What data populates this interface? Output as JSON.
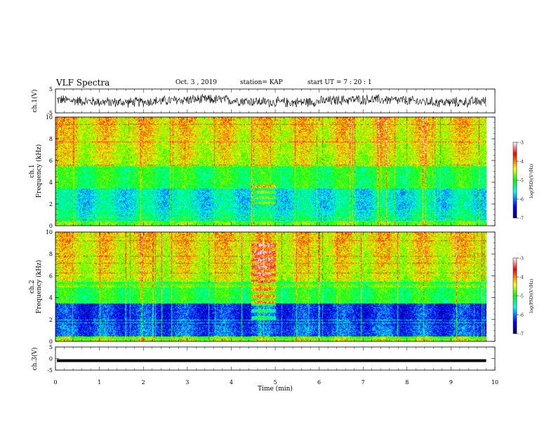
{
  "header": {
    "title": "VLF Spectra",
    "date": "Oct. 3 , 2019",
    "station": "station= KAP",
    "start": "start UT = 7 : 20 : 1"
  },
  "chart_data": [
    {
      "type": "line",
      "panel": "ch1-waveform",
      "ylabel": "ch.1(V)",
      "ylim": [
        -5,
        5
      ],
      "yticks": [
        "5",
        "-5"
      ],
      "xlim": [
        0,
        10
      ],
      "description_mean": 0,
      "noise_amplitude": 2.5,
      "color": "#000000"
    },
    {
      "type": "heatmap",
      "panel": "ch1-spectrogram",
      "ylabel": "ch.1\nFrequency (kHz)",
      "ylim": [
        0,
        10
      ],
      "yticks": [
        "0",
        "2",
        "4",
        "6",
        "8",
        "10"
      ],
      "xlim": [
        0,
        10
      ],
      "data_end_min": 9.8,
      "colorbar": {
        "label": "log(PSD)(V²/Hz)",
        "range": [
          -7,
          -3
        ],
        "ticks": [
          "-3",
          "-4",
          "-5",
          "-6",
          "-7"
        ]
      }
    },
    {
      "type": "heatmap",
      "panel": "ch2-spectrogram",
      "ylabel": "ch.2\nFrequency (kHz)",
      "ylim": [
        0,
        10
      ],
      "yticks": [
        "0",
        "2",
        "4",
        "6",
        "8",
        "10"
      ],
      "xlim": [
        0,
        10
      ],
      "data_end_min": 9.8,
      "colorbar": {
        "label": "log(PSD)(V²/Hz)",
        "range": [
          -7,
          -3
        ],
        "ticks": [
          "-3",
          "-4",
          "-5",
          "-6",
          "-7"
        ]
      }
    },
    {
      "type": "line",
      "panel": "ch3-waveform",
      "ylabel": "ch.3(V)",
      "ylim": [
        -5,
        5
      ],
      "yticks": [
        "5",
        "0",
        "-5"
      ],
      "xlim": [
        0,
        10
      ],
      "constant_value": 0,
      "color": "#000000"
    }
  ],
  "xaxis": {
    "label": "Time (min)",
    "ticks": [
      "0",
      "1",
      "2",
      "3",
      "4",
      "5",
      "6",
      "7",
      "8",
      "9",
      "10"
    ]
  },
  "colors": {
    "colormap": [
      "#000066",
      "#0000ff",
      "#00ffff",
      "#00ff00",
      "#ffff00",
      "#ff0000",
      "#ffffff"
    ]
  }
}
